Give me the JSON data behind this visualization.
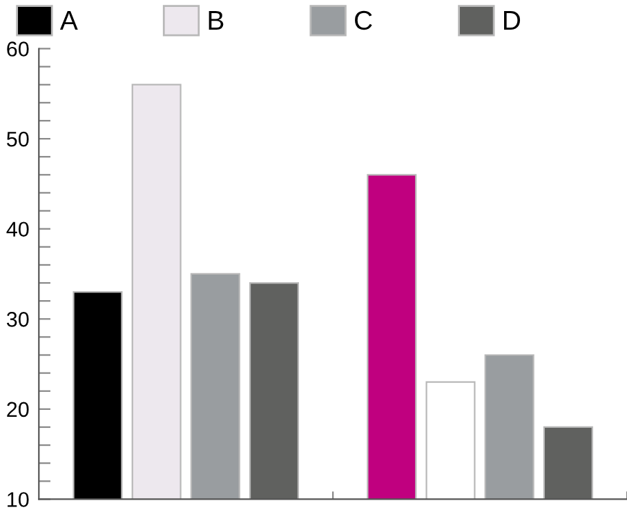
{
  "chart_data": {
    "type": "bar",
    "categories": [
      null,
      null
    ],
    "series": [
      {
        "name": "A",
        "color": "#000000",
        "colors": [
          "#000000",
          "#c0007f"
        ],
        "values": [
          33,
          46
        ]
      },
      {
        "name": "B",
        "color": "#ede8ee",
        "colors": [
          "#ede8ee",
          "#ffffff"
        ],
        "values": [
          56,
          23
        ]
      },
      {
        "name": "C",
        "color": "#999da0",
        "colors": [
          "#999da0",
          "#999da0"
        ],
        "values": [
          35,
          26
        ]
      },
      {
        "name": "D",
        "color": "#60615f",
        "colors": [
          "#60615f",
          "#60615f"
        ],
        "values": [
          34,
          18
        ]
      }
    ],
    "ylim": [
      10,
      60
    ],
    "yticks": [
      10,
      {
        "value": 12,
        "label": null
      },
      {
        "value": 14,
        "label": null
      },
      {
        "value": 16,
        "label": null
      },
      {
        "value": 18,
        "label": null
      },
      20,
      {
        "value": 22,
        "label": null
      },
      {
        "value": 24,
        "label": null
      },
      {
        "value": 26,
        "label": null
      },
      {
        "value": 28,
        "label": null
      },
      30,
      {
        "value": 32,
        "label": null
      },
      {
        "value": 34,
        "label": null
      },
      {
        "value": 36,
        "label": null
      },
      {
        "value": 38,
        "label": null
      },
      40,
      {
        "value": 42,
        "label": null
      },
      {
        "value": 44,
        "label": null
      },
      {
        "value": 46,
        "label": null
      },
      {
        "value": 48,
        "label": null
      },
      50,
      {
        "value": 52,
        "label": null
      },
      {
        "value": 54,
        "label": null
      },
      {
        "value": 56,
        "label": null
      },
      {
        "value": 58,
        "label": null
      },
      60
    ],
    "grid": false,
    "legend": "top"
  }
}
